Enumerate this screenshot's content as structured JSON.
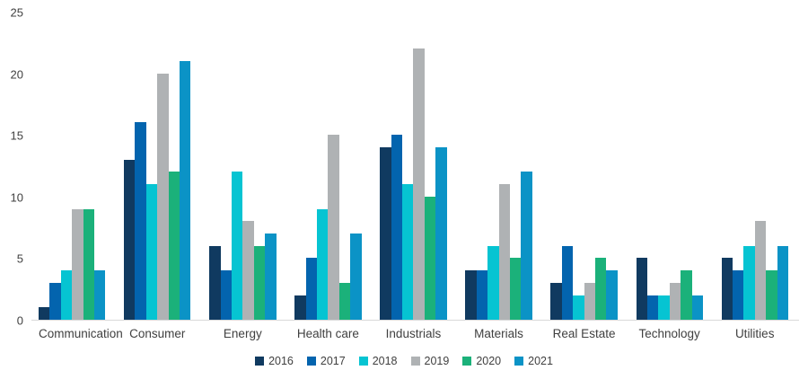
{
  "chart_data": {
    "type": "bar",
    "title": "",
    "xlabel": "",
    "ylabel": "",
    "ylim": [
      0,
      25
    ],
    "yticks": [
      0,
      5,
      10,
      15,
      20,
      25
    ],
    "grid": false,
    "legend_position": "bottom-center",
    "categories": [
      "Communication",
      "Consumer",
      "Energy",
      "Health care",
      "Industrials",
      "Materials",
      "Real Estate",
      "Technology",
      "Utilities"
    ],
    "series": [
      {
        "name": "2016",
        "color": "#103a60",
        "values": [
          1,
          13,
          6,
          2,
          14,
          4,
          3,
          5,
          5
        ]
      },
      {
        "name": "2017",
        "color": "#0364ae",
        "values": [
          3,
          16,
          4,
          5,
          15,
          4,
          6,
          2,
          4
        ]
      },
      {
        "name": "2018",
        "color": "#06c4d2",
        "values": [
          4,
          11,
          12,
          9,
          11,
          6,
          2,
          2,
          6
        ]
      },
      {
        "name": "2019",
        "color": "#afb2b4",
        "values": [
          9,
          20,
          8,
          15,
          22,
          11,
          3,
          3,
          8
        ]
      },
      {
        "name": "2020",
        "color": "#1bb17a",
        "values": [
          9,
          12,
          6,
          3,
          10,
          5,
          5,
          4,
          4
        ]
      },
      {
        "name": "2021",
        "color": "#0b93c6",
        "values": [
          4,
          21,
          7,
          7,
          14,
          12,
          4,
          2,
          6
        ]
      }
    ],
    "colors": {
      "axis_text": "#404040",
      "baseline": "#d9d9d9",
      "background": "#ffffff"
    }
  }
}
